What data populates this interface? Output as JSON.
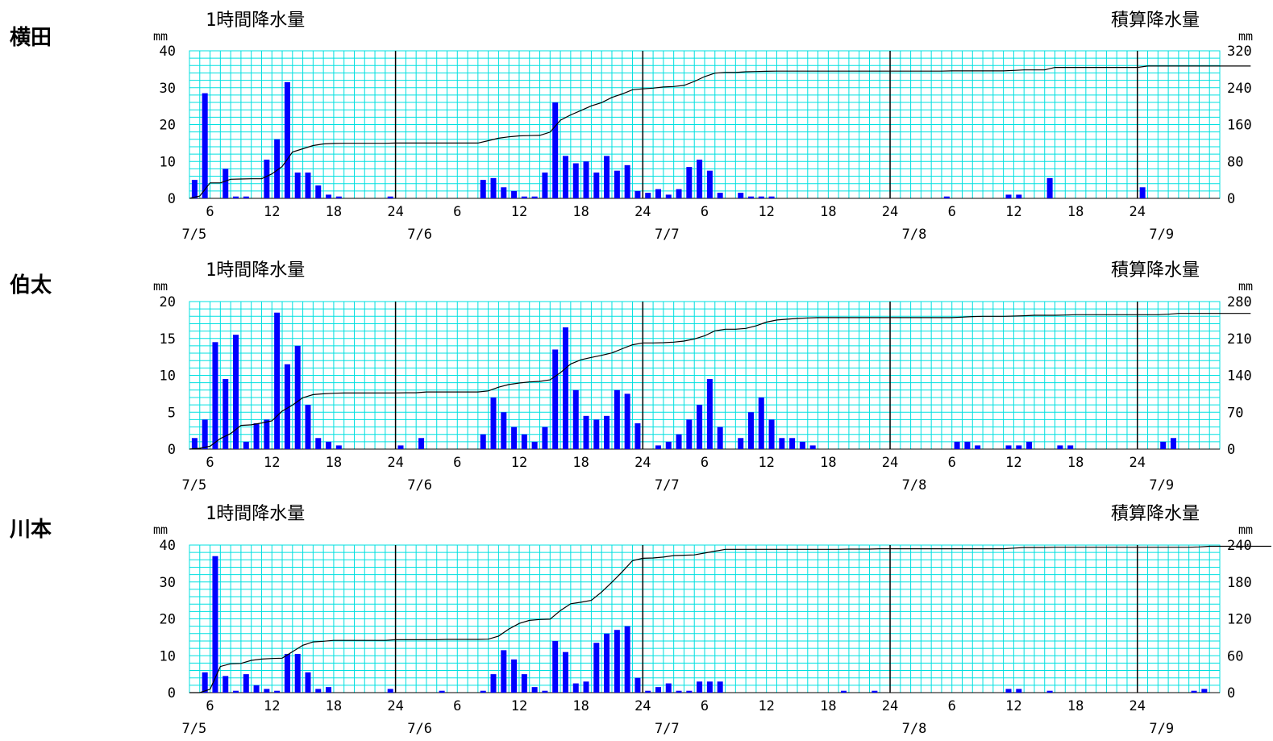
{
  "chart_data": [
    {
      "type": "bar",
      "station": "横田",
      "left_title": "1時間降水量",
      "right_title": "積算降水量",
      "left_unit": "mm",
      "right_unit": "mm",
      "ylim": [
        0,
        40
      ],
      "ylim_right": [
        0,
        320
      ],
      "left_ticks": [
        "40",
        "30",
        "20",
        "10",
        "0"
      ],
      "right_ticks": [
        "320",
        "240",
        "160",
        "80",
        "0"
      ],
      "x_hour_labels": [
        "6",
        "12",
        "18",
        "24",
        "6",
        "12",
        "18",
        "24",
        "6",
        "12",
        "18",
        "24",
        "6",
        "12",
        "18",
        "24"
      ],
      "date_labels": [
        "7/5",
        "7/6",
        "7/7",
        "7/8",
        "7/9"
      ],
      "grid": true,
      "series": [
        {
          "unit": "mm/h",
          "start": "7/5 5:00",
          "interval_h": 1,
          "values": [
            5,
            28.5,
            0,
            8,
            0.5,
            0.5,
            0,
            10.5,
            16,
            31.5,
            7,
            7,
            3.5,
            1,
            0.5,
            0,
            0,
            0,
            0,
            0.5,
            0,
            0,
            0,
            0,
            0,
            0,
            0,
            0,
            5,
            5.5,
            3,
            2,
            0.5,
            0.5,
            7,
            26,
            11.5,
            9.5,
            10,
            7,
            11.5,
            7.5,
            9,
            2,
            1.5,
            2.5,
            1,
            2.5,
            8.5,
            10.5,
            7.5,
            1.5,
            0,
            1.5,
            0.5,
            0.5,
            0.5,
            0,
            0,
            0,
            0,
            0,
            0,
            0,
            0,
            0,
            0,
            0,
            0,
            0,
            0,
            0,
            0,
            0.5,
            0,
            0,
            0,
            0,
            0,
            1,
            1,
            0,
            0,
            5.5,
            0,
            0,
            0,
            0,
            0,
            0,
            0,
            0,
            3,
            0,
            0,
            0,
            0,
            0,
            0,
            0,
            0,
            0,
            0
          ]
        },
        {
          "type": "line",
          "unit": "mm",
          "start": "7/5 5:00",
          "interval_h": 1,
          "values": [
            5,
            33.5,
            33.5,
            41.5,
            42,
            42.5,
            42.5,
            53,
            69,
            100.5,
            107.5,
            114.5,
            118,
            119,
            119.5,
            119.5,
            119.5,
            119.5,
            119.5,
            120,
            120,
            120,
            120,
            120,
            120,
            120,
            120,
            120,
            125,
            130.5,
            133.5,
            135.5,
            136,
            136.5,
            143.5,
            169.5,
            181,
            190.5,
            200.5,
            207.5,
            219,
            226.5,
            235.5,
            237.5,
            239,
            241.5,
            242.5,
            245,
            253.5,
            264,
            271.5,
            273,
            273,
            274.5,
            275,
            275.5,
            276,
            276,
            276,
            276,
            276,
            276,
            276,
            276,
            276,
            276,
            276,
            276,
            276,
            276,
            276,
            276,
            276,
            276.5,
            276.5,
            276.5,
            276.5,
            276.5,
            276.5,
            277.5,
            278.5,
            278.5,
            278.5,
            284,
            284,
            284,
            284,
            284,
            284,
            284,
            284,
            284,
            287,
            287,
            287,
            287,
            287,
            287,
            287,
            287,
            287,
            287,
            287
          ]
        }
      ]
    },
    {
      "type": "bar",
      "station": "伯太",
      "left_title": "1時間降水量",
      "right_title": "積算降水量",
      "left_unit": "mm",
      "right_unit": "mm",
      "ylim": [
        0,
        20
      ],
      "ylim_right": [
        0,
        280
      ],
      "left_ticks": [
        "20",
        "15",
        "10",
        "5",
        "0"
      ],
      "right_ticks": [
        "280",
        "210",
        "140",
        "70",
        "0"
      ],
      "x_hour_labels": [
        "6",
        "12",
        "18",
        "24",
        "6",
        "12",
        "18",
        "24",
        "6",
        "12",
        "18",
        "24",
        "6",
        "12",
        "18",
        "24"
      ],
      "date_labels": [
        "7/5",
        "7/6",
        "7/7",
        "7/8",
        "7/9"
      ],
      "grid": true,
      "series": [
        {
          "unit": "mm/h",
          "start": "7/5 5:00",
          "interval_h": 1,
          "values": [
            1.5,
            4,
            14.5,
            9.5,
            15.5,
            1,
            3.5,
            4,
            18.5,
            11.5,
            14,
            6,
            1.5,
            1,
            0.5,
            0,
            0,
            0,
            0,
            0,
            0.5,
            0,
            1.5,
            0,
            0,
            0,
            0,
            0,
            2,
            7,
            5,
            3,
            2,
            1,
            3,
            13.5,
            16.5,
            8,
            4.5,
            4,
            4.5,
            8,
            7.5,
            3.5,
            0,
            0.5,
            1,
            2,
            4,
            6,
            9.5,
            3,
            0,
            1.5,
            5,
            7,
            4,
            1.5,
            1.5,
            1,
            0.5,
            0,
            0,
            0,
            0,
            0,
            0,
            0,
            0,
            0,
            0,
            0,
            0,
            0,
            1,
            1,
            0.5,
            0,
            0,
            0.5,
            0.5,
            1,
            0,
            0,
            0.5,
            0.5,
            0,
            0,
            0,
            0,
            0,
            0,
            0,
            0,
            1,
            1.5,
            0,
            0,
            0,
            0,
            0,
            0,
            0,
            0
          ]
        },
        {
          "type": "line",
          "unit": "mm",
          "start": "7/5 5:00",
          "interval_h": 1,
          "values": [
            1.5,
            5.5,
            20,
            29.5,
            45,
            46,
            49.5,
            53.5,
            72,
            83.5,
            97.5,
            103.5,
            105,
            106,
            106.5,
            106.5,
            106.5,
            106.5,
            106.5,
            106.5,
            107,
            107,
            108.5,
            108.5,
            108.5,
            108.5,
            108.5,
            108.5,
            110.5,
            117.5,
            122.5,
            125.5,
            127.5,
            128.5,
            131.5,
            145,
            161.5,
            169.5,
            174,
            178,
            182.5,
            190.5,
            198,
            201.5,
            201.5,
            202,
            203,
            205,
            209,
            215,
            224.5,
            227.5,
            227.5,
            229,
            234,
            241,
            245,
            246.5,
            248,
            249,
            249.5,
            249.5,
            249.5,
            249.5,
            249.5,
            249.5,
            249.5,
            249.5,
            249.5,
            249.5,
            249.5,
            249.5,
            249.5,
            249.5,
            250.5,
            251.5,
            252,
            252,
            252,
            252.5,
            253,
            254,
            254,
            254,
            254.5,
            255,
            255,
            255,
            255,
            255,
            255,
            255,
            255,
            255,
            256,
            257.5,
            257.5,
            257.5,
            257.5,
            257.5,
            257.5,
            257.5,
            257.5
          ]
        }
      ]
    },
    {
      "type": "bar",
      "station": "川本",
      "left_title": "1時間降水量",
      "right_title": "積算降水量",
      "left_unit": "mm",
      "right_unit": "mm",
      "ylim": [
        0,
        40
      ],
      "ylim_right": [
        0,
        240
      ],
      "left_ticks": [
        "40",
        "30",
        "20",
        "10",
        "0"
      ],
      "right_ticks": [
        "240",
        "180",
        "120",
        "60",
        "0"
      ],
      "x_hour_labels": [
        "6",
        "12",
        "18",
        "24",
        "6",
        "12",
        "18",
        "24",
        "6",
        "12",
        "18",
        "24",
        "6",
        "12",
        "18",
        "24"
      ],
      "date_labels": [
        "7/5",
        "7/6",
        "7/7",
        "7/8",
        "7/9"
      ],
      "grid": true,
      "series": [
        {
          "unit": "mm/h",
          "start": "7/5 5:00",
          "interval_h": 1,
          "values": [
            0,
            5.5,
            37,
            4.5,
            0.5,
            5,
            2,
            1,
            0.5,
            10.5,
            10.5,
            5.5,
            1,
            1.5,
            0,
            0,
            0,
            0,
            0,
            1,
            0,
            0,
            0,
            0,
            0.5,
            0,
            0,
            0,
            0.5,
            5,
            11.5,
            9,
            5,
            1.5,
            0.5,
            14,
            11,
            2.5,
            3,
            13.5,
            16,
            17,
            18,
            4,
            0.5,
            1.5,
            2.5,
            0.5,
            0.5,
            3,
            3,
            3,
            0,
            0,
            0,
            0,
            0,
            0,
            0,
            0,
            0,
            0,
            0,
            0.5,
            0,
            0,
            0.5,
            0,
            0,
            0,
            0,
            0,
            0,
            0,
            0,
            0,
            0,
            0,
            0,
            1,
            1,
            0,
            0,
            0.5,
            0,
            0,
            0,
            0,
            0,
            0,
            0,
            0,
            0,
            0,
            0,
            0,
            0,
            0.5,
            1,
            0,
            0,
            0,
            0,
            0,
            0
          ]
        },
        {
          "type": "line",
          "unit": "mm",
          "start": "7/5 5:00",
          "interval_h": 1,
          "values": [
            0,
            5.5,
            42.5,
            47,
            47.5,
            52.5,
            54.5,
            55.5,
            56,
            66.5,
            77,
            82.5,
            83.5,
            85,
            85,
            85,
            85,
            85,
            85,
            86,
            86,
            86,
            86,
            86,
            86.5,
            86.5,
            86.5,
            86.5,
            87,
            92,
            103.5,
            112.5,
            117.5,
            119,
            119.5,
            133.5,
            144.5,
            147,
            150,
            163.5,
            179.5,
            196.5,
            214.5,
            218.5,
            219,
            220.5,
            223,
            223.5,
            224,
            227,
            230,
            233,
            233,
            233,
            233,
            233,
            233,
            233,
            233,
            233,
            233,
            233,
            233,
            233.5,
            233.5,
            233.5,
            234,
            234,
            234,
            234,
            234,
            234,
            234,
            234,
            234,
            234,
            234,
            234,
            234,
            235,
            236,
            236,
            236,
            236.5,
            236.5,
            236.5,
            236.5,
            236.5,
            236.5,
            236.5,
            236.5,
            236.5,
            236.5,
            236.5,
            236.5,
            236.5,
            236.5,
            237,
            238,
            238,
            238,
            238,
            238,
            238,
            238
          ]
        }
      ]
    }
  ],
  "colors": {
    "grid": "#00e0e0",
    "bar": "#0000ff",
    "line": "#000000",
    "day_line": "#000000"
  }
}
